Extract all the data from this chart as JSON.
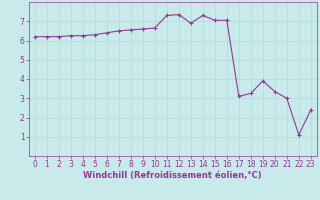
{
  "x": [
    0,
    1,
    2,
    3,
    4,
    5,
    6,
    7,
    8,
    9,
    10,
    11,
    12,
    13,
    14,
    15,
    16,
    17,
    18,
    19,
    20,
    21,
    22,
    23
  ],
  "y": [
    6.2,
    6.2,
    6.2,
    6.25,
    6.25,
    6.3,
    6.4,
    6.5,
    6.55,
    6.6,
    6.65,
    7.3,
    7.35,
    6.9,
    7.3,
    7.05,
    7.05,
    3.1,
    3.25,
    3.9,
    3.35,
    3.0,
    1.1,
    2.4
  ],
  "line_color": "#993399",
  "marker": "+",
  "marker_size": 3,
  "marker_linewidth": 0.8,
  "bg_color": "#c8eaea",
  "grid_color": "#b0d8d8",
  "xlabel": "Windchill (Refroidissement éolien,°C)",
  "xlabel_color": "#993399",
  "xlabel_fontsize": 6.0,
  "xlim": [
    -0.5,
    23.5
  ],
  "ylim": [
    0,
    8
  ],
  "xticks": [
    0,
    1,
    2,
    3,
    4,
    5,
    6,
    7,
    8,
    9,
    10,
    11,
    12,
    13,
    14,
    15,
    16,
    17,
    18,
    19,
    20,
    21,
    22,
    23
  ],
  "yticks": [
    1,
    2,
    3,
    4,
    5,
    6,
    7
  ],
  "tick_fontsize": 5.5,
  "tick_color": "#993399",
  "spine_color": "#993399",
  "linewidth": 0.8,
  "linestyle": "-"
}
